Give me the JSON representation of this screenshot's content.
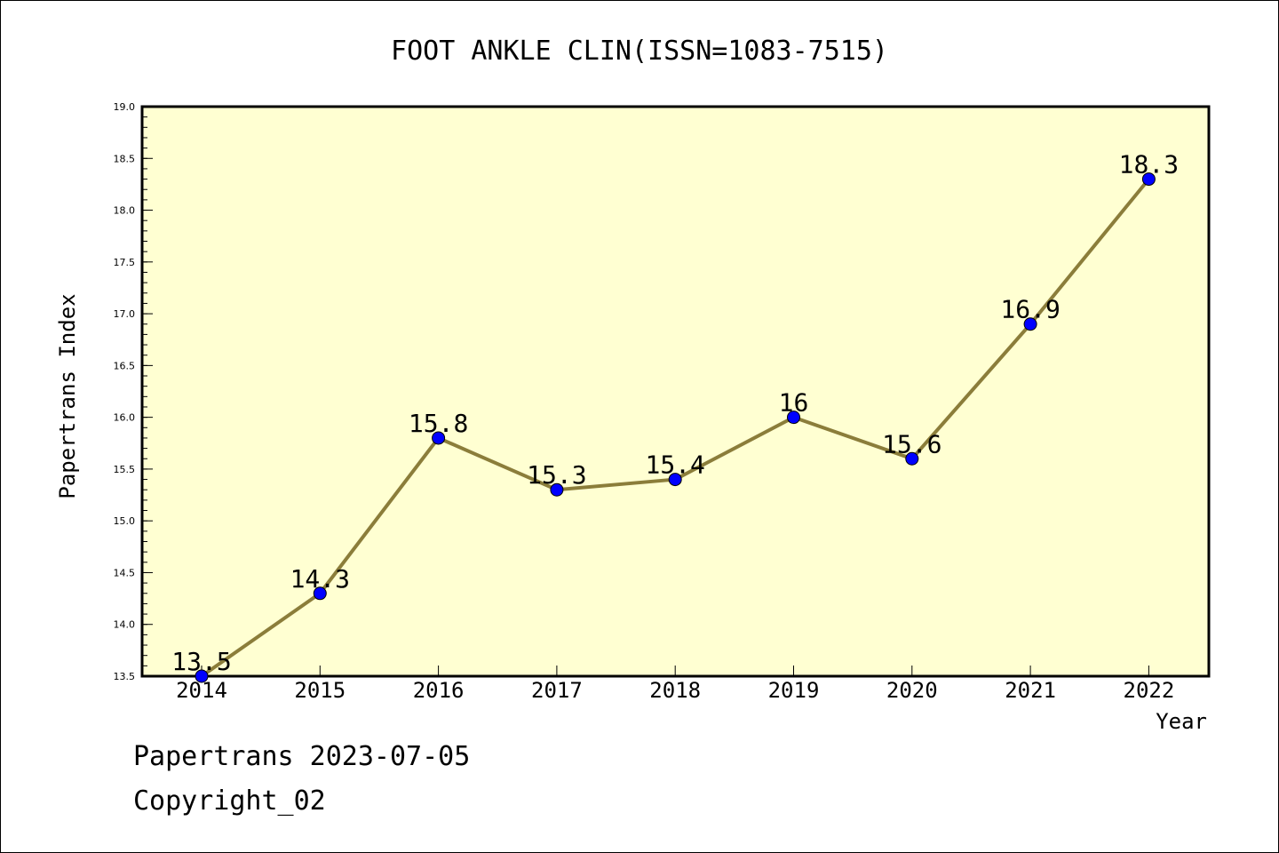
{
  "chart_data": {
    "type": "line",
    "title": "FOOT ANKLE CLIN(ISSN=1083-7515)",
    "xlabel": "Year",
    "ylabel": "Papertrans Index",
    "categories": [
      "2014",
      "2015",
      "2016",
      "2017",
      "2018",
      "2019",
      "2020",
      "2021",
      "2022"
    ],
    "series": [
      {
        "values": [
          13.5,
          14.3,
          15.8,
          15.3,
          15.4,
          16,
          15.6,
          16.9,
          18.3
        ],
        "labels": [
          "13.5",
          "14.3",
          "15.8",
          "15.3",
          "15.4",
          "16",
          "15.6",
          "16.9",
          "18.3"
        ]
      }
    ],
    "ylim": [
      13.5,
      19.0
    ],
    "yticks": [
      "13.5",
      "14.0",
      "14.5",
      "15.0",
      "15.5",
      "16.0",
      "16.5",
      "17.0",
      "17.5",
      "18.0",
      "18.5",
      "19.0"
    ],
    "ytick_values": [
      13.5,
      14.0,
      14.5,
      15.0,
      15.5,
      16.0,
      16.5,
      17.0,
      17.5,
      18.0,
      18.5,
      19.0
    ],
    "grid": false,
    "colors": {
      "plot_background": "#ffffd2",
      "line": "#8b7d3a",
      "marker": "#0000ff"
    }
  },
  "footer": {
    "source": "Papertrans 2023-07-05",
    "copyright": "Copyright_02"
  }
}
